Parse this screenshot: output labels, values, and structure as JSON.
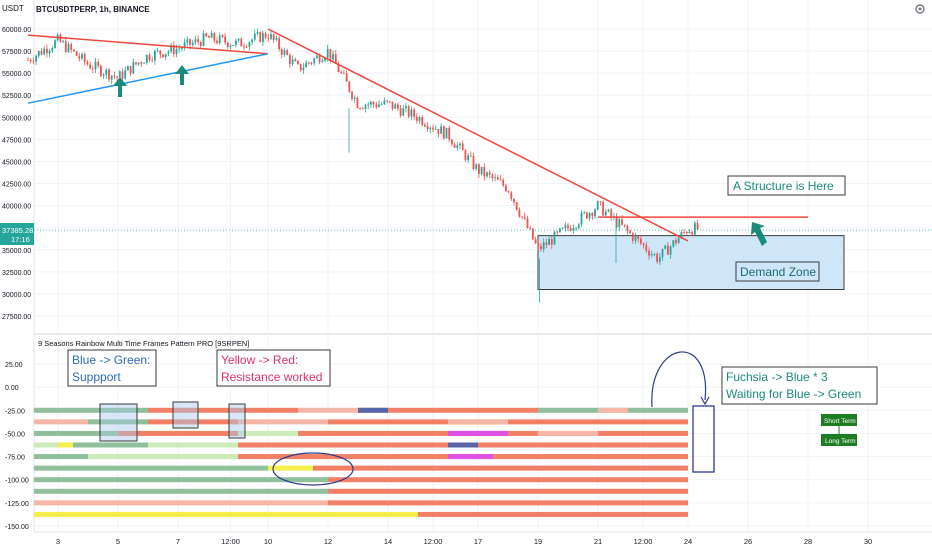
{
  "header": {
    "currency": "USDT",
    "symbol": "BTCUSDTPERP, 1h, BINANCE"
  },
  "toolbar": {
    "settings_icon": "gear-icon"
  },
  "price_pane": {
    "last_price": "37385.28",
    "countdown": "17:16",
    "y_ticks": [
      "60000.00",
      "57500.00",
      "55000.00",
      "52500.00",
      "50000.00",
      "47500.00",
      "45000.00",
      "42500.00",
      "40000.00",
      "37500.00",
      "35000.00",
      "32500.00",
      "30000.00",
      "27500.00"
    ]
  },
  "indicator_pane": {
    "title": "9 Seasons Rainbow Multi Time Frames Pattern PRO [9SRPEN]",
    "y_ticks": [
      "25.00",
      "0.00",
      "-25.00",
      "-50.00",
      "-75.00",
      "-100.00",
      "-125.00",
      "-150.00"
    ]
  },
  "x_ticks": [
    "3",
    "5",
    "7",
    "12:00",
    "10",
    "12",
    "14",
    "12:00",
    "17",
    "19",
    "21",
    "12:00",
    "24",
    "26",
    "28",
    "30"
  ],
  "annotations": {
    "structure": "A Structure is Here",
    "demand_zone": "Demand Zone",
    "blue_green_1": "Blue -> Green:",
    "blue_green_2": "Suppport",
    "yellow_red_1": "Yellow -> Red:",
    "yellow_red_2": "Resistance worked",
    "fuchsia_1": "Fuchsia -> Blue * 3",
    "fuchsia_2": "Waiting for Blue -> Green",
    "short_term": "Short Term",
    "long_term": "Long Term"
  },
  "colors": {
    "up_candle": "#26a69a",
    "down_candle": "#ef5350",
    "trendline_red": "#f0473c",
    "trendline_blue": "#2196f3",
    "demand_zone_fill": "#cfe6f9",
    "arrow_teal": "#1a8a7d",
    "badge_green": "#1e7d23",
    "strip_red": "#f28066",
    "strip_pink": "#f6b7a7",
    "strip_sage": "#8fbf9b",
    "strip_light_green": "#cdebb8",
    "strip_yellow": "#f5ef4c",
    "strip_fuchsia": "#e052e6",
    "strip_blue": "#5865a8"
  },
  "chart_data": {
    "type": "candlestick",
    "title": "BTCUSDTPERP, 1h, BINANCE",
    "price_ylim": [
      27500,
      61000
    ],
    "indicator_ylim": [
      -150,
      30
    ],
    "x": [
      "2",
      "3",
      "4",
      "5",
      "6",
      "7",
      "8",
      "9",
      "10",
      "11",
      "12",
      "13",
      "14",
      "15",
      "16",
      "17",
      "18",
      "19",
      "20",
      "21",
      "22",
      "23",
      "24",
      "25"
    ],
    "close_path": [
      {
        "x": "2",
        "y": 56500
      },
      {
        "x": "3",
        "y": 58700
      },
      {
        "x": "4",
        "y": 56000
      },
      {
        "x": "5",
        "y": 54500
      },
      {
        "x": "6",
        "y": 57000
      },
      {
        "x": "7",
        "y": 57800
      },
      {
        "x": "8",
        "y": 59000
      },
      {
        "x": "9",
        "y": 58300
      },
      {
        "x": "10",
        "y": 59400
      },
      {
        "x": "11",
        "y": 55500
      },
      {
        "x": "12",
        "y": 57500
      },
      {
        "x": "13",
        "y": 51500
      },
      {
        "x": "14",
        "y": 51500
      },
      {
        "x": "15",
        "y": 50000
      },
      {
        "x": "16",
        "y": 48000
      },
      {
        "x": "17",
        "y": 44000
      },
      {
        "x": "18",
        "y": 42000
      },
      {
        "x": "19",
        "y": 35000
      },
      {
        "x": "20",
        "y": 37500
      },
      {
        "x": "21",
        "y": 40000
      },
      {
        "x": "22",
        "y": 37000
      },
      {
        "x": "23",
        "y": 34000
      },
      {
        "x": "24",
        "y": 37385
      }
    ],
    "trendlines": [
      {
        "color": "red",
        "from": {
          "x": "2",
          "y": 59300
        },
        "to": {
          "x": "10",
          "y": 57200
        }
      },
      {
        "color": "blue",
        "from": {
          "x": "2",
          "y": 51600
        },
        "to": {
          "x": "10",
          "y": 57200
        }
      },
      {
        "color": "red",
        "from": {
          "x": "10",
          "y": 60000
        },
        "to": {
          "x": "24",
          "y": 36000
        }
      },
      {
        "color": "red",
        "from": {
          "x": "21",
          "y": 38700
        },
        "to": {
          "x": "28",
          "y": 38700
        }
      }
    ],
    "demand_zone": {
      "from": "19",
      "to": "30",
      "ymin": 30500,
      "ymax": 36600
    },
    "strips": [
      {
        "y": -25,
        "segments": [
          [
            "sage",
            "2",
            "6"
          ],
          [
            "red",
            "6",
            "11"
          ],
          [
            "pink",
            "11",
            "13"
          ],
          [
            "red",
            "13",
            "19"
          ],
          [
            "blue",
            "13",
            "14"
          ],
          [
            "sage",
            "19",
            "24"
          ],
          [
            "pink",
            "21",
            "22"
          ]
        ]
      },
      {
        "y": -37.5,
        "segments": [
          [
            "pink",
            "2",
            "4"
          ],
          [
            "sage",
            "4",
            "6"
          ],
          [
            "red",
            "6",
            "9"
          ],
          [
            "pink",
            "9",
            "12"
          ],
          [
            "red",
            "12",
            "24"
          ],
          [
            "pink",
            "16",
            "18"
          ]
        ]
      },
      {
        "y": -50,
        "segments": [
          [
            "sage",
            "2",
            "5"
          ],
          [
            "red",
            "5",
            "9"
          ],
          [
            "light_green",
            "9",
            "11"
          ],
          [
            "red",
            "11",
            "24"
          ],
          [
            "fuchsia",
            "16",
            "18"
          ],
          [
            "pink",
            "19",
            "21"
          ]
        ]
      },
      {
        "y": -62.5,
        "segments": [
          [
            "light_green",
            "2",
            "3"
          ],
          [
            "yellow",
            "3",
            "3.5"
          ],
          [
            "sage",
            "3.5",
            "6"
          ],
          [
            "light_green",
            "6",
            "9"
          ],
          [
            "red",
            "9",
            "24"
          ],
          [
            "blue",
            "16",
            "17"
          ]
        ]
      },
      {
        "y": -75,
        "segments": [
          [
            "sage",
            "2",
            "4"
          ],
          [
            "light_green",
            "4",
            "9"
          ],
          [
            "red",
            "9",
            "24"
          ],
          [
            "fuchsia",
            "16",
            "17.5"
          ]
        ]
      },
      {
        "y": -87.5,
        "segments": [
          [
            "sage",
            "2",
            "10"
          ],
          [
            "yellow",
            "10",
            "11.5"
          ],
          [
            "red",
            "11.5",
            "24"
          ]
        ]
      },
      {
        "y": -100,
        "segments": [
          [
            "sage",
            "2",
            "12"
          ],
          [
            "red",
            "12",
            "24"
          ]
        ]
      },
      {
        "y": -112.5,
        "segments": [
          [
            "sage",
            "2",
            "12"
          ],
          [
            "red",
            "12",
            "24"
          ]
        ]
      },
      {
        "y": -125,
        "segments": [
          [
            "pink",
            "2",
            "12"
          ],
          [
            "red",
            "12",
            "24"
          ]
        ]
      },
      {
        "y": -137.5,
        "segments": [
          [
            "yellow",
            "2",
            "15"
          ],
          [
            "red",
            "15",
            "24"
          ]
        ]
      }
    ]
  }
}
